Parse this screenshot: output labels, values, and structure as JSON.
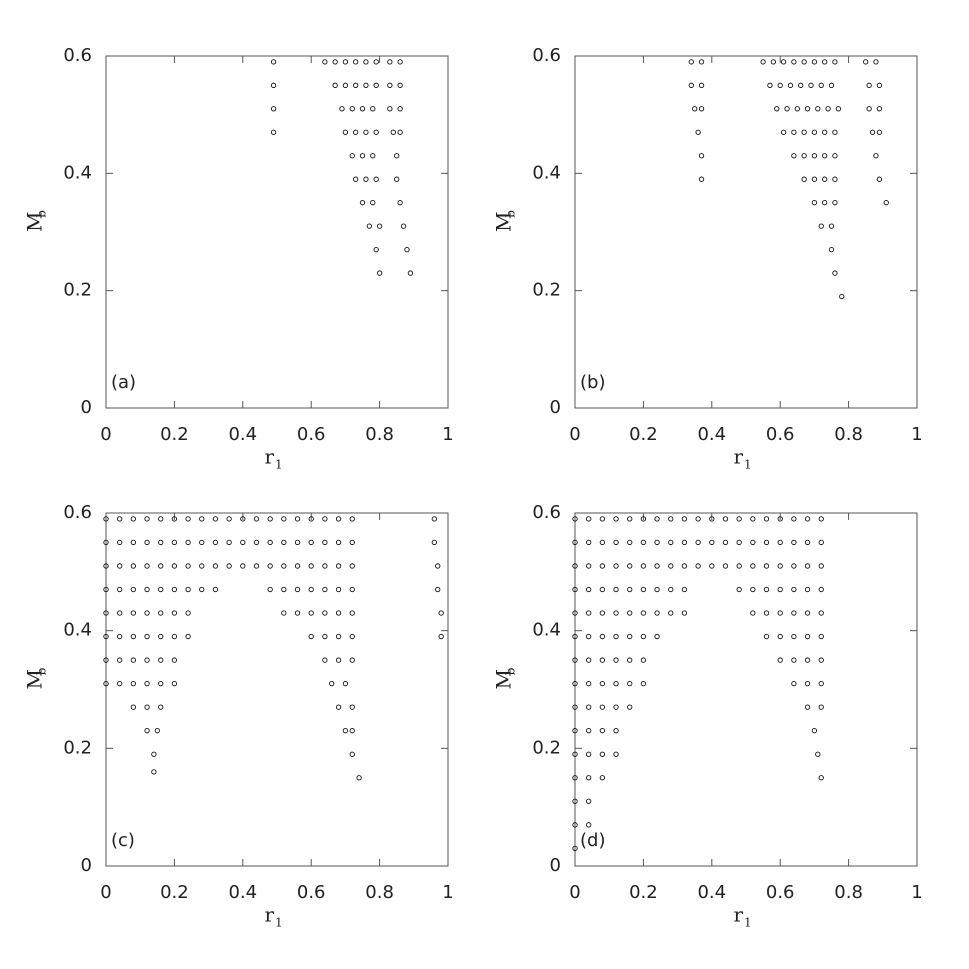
{
  "chart_data": [
    {
      "type": "scatter",
      "annotation": "(a)",
      "color": "#111111",
      "xlabel": {
        "text": "r",
        "subscript": "1"
      },
      "ylabel": {
        "text": "M",
        "subscript": "b"
      },
      "xlim": [
        0,
        1
      ],
      "ylim": [
        0,
        0.6
      ],
      "xticks": [
        0,
        0.2,
        0.4,
        0.6,
        0.8,
        1
      ],
      "yticks": [
        0,
        0.2,
        0.4,
        0.6
      ],
      "x": [
        0.49,
        0.64,
        0.67,
        0.7,
        0.73,
        0.76,
        0.79,
        0.83,
        0.86,
        0.49,
        0.67,
        0.7,
        0.73,
        0.76,
        0.79,
        0.83,
        0.86,
        0.49,
        0.69,
        0.72,
        0.75,
        0.78,
        0.83,
        0.86,
        0.49,
        0.7,
        0.73,
        0.76,
        0.79,
        0.84,
        0.86,
        0.72,
        0.75,
        0.78,
        0.85,
        0.73,
        0.76,
        0.79,
        0.85,
        0.75,
        0.78,
        0.86,
        0.77,
        0.8,
        0.87,
        0.79,
        0.88,
        0.8,
        0.89
      ],
      "values": [
        0.59,
        0.59,
        0.59,
        0.59,
        0.59,
        0.59,
        0.59,
        0.59,
        0.59,
        0.55,
        0.55,
        0.55,
        0.55,
        0.55,
        0.55,
        0.55,
        0.55,
        0.51,
        0.51,
        0.51,
        0.51,
        0.51,
        0.51,
        0.51,
        0.47,
        0.47,
        0.47,
        0.47,
        0.47,
        0.47,
        0.47,
        0.43,
        0.43,
        0.43,
        0.43,
        0.39,
        0.39,
        0.39,
        0.39,
        0.35,
        0.35,
        0.35,
        0.31,
        0.31,
        0.31,
        0.27,
        0.27,
        0.23,
        0.23
      ]
    },
    {
      "type": "scatter",
      "annotation": "(b)",
      "color": "#111111",
      "xlabel": {
        "text": "r",
        "subscript": "1"
      },
      "ylabel": {
        "text": "M",
        "subscript": "b"
      },
      "xlim": [
        0,
        1
      ],
      "ylim": [
        0,
        0.6
      ],
      "xticks": [
        0,
        0.2,
        0.4,
        0.6,
        0.8,
        1
      ],
      "yticks": [
        0,
        0.2,
        0.4,
        0.6
      ],
      "x": [
        0.34,
        0.37,
        0.55,
        0.58,
        0.61,
        0.64,
        0.67,
        0.7,
        0.73,
        0.76,
        0.85,
        0.88,
        0.34,
        0.37,
        0.57,
        0.6,
        0.63,
        0.66,
        0.69,
        0.72,
        0.75,
        0.86,
        0.89,
        0.35,
        0.37,
        0.59,
        0.62,
        0.65,
        0.68,
        0.71,
        0.74,
        0.77,
        0.86,
        0.89,
        0.36,
        0.61,
        0.64,
        0.67,
        0.7,
        0.73,
        0.76,
        0.87,
        0.89,
        0.37,
        0.64,
        0.67,
        0.7,
        0.73,
        0.76,
        0.88,
        0.37,
        0.67,
        0.7,
        0.73,
        0.76,
        0.89,
        0.7,
        0.73,
        0.76,
        0.91,
        0.72,
        0.75,
        0.75,
        0.76,
        0.78
      ],
      "values": [
        0.59,
        0.59,
        0.59,
        0.59,
        0.59,
        0.59,
        0.59,
        0.59,
        0.59,
        0.59,
        0.59,
        0.59,
        0.55,
        0.55,
        0.55,
        0.55,
        0.55,
        0.55,
        0.55,
        0.55,
        0.55,
        0.55,
        0.55,
        0.51,
        0.51,
        0.51,
        0.51,
        0.51,
        0.51,
        0.51,
        0.51,
        0.51,
        0.51,
        0.51,
        0.47,
        0.47,
        0.47,
        0.47,
        0.47,
        0.47,
        0.47,
        0.47,
        0.47,
        0.43,
        0.43,
        0.43,
        0.43,
        0.43,
        0.43,
        0.43,
        0.39,
        0.39,
        0.39,
        0.39,
        0.39,
        0.39,
        0.35,
        0.35,
        0.35,
        0.35,
        0.31,
        0.31,
        0.27,
        0.23,
        0.19
      ]
    },
    {
      "type": "scatter",
      "annotation": "(c)",
      "color": "#111111",
      "xlabel": {
        "text": "r",
        "subscript": "1"
      },
      "ylabel": {
        "text": "M",
        "subscript": "b"
      },
      "xlim": [
        0,
        1
      ],
      "ylim": [
        0,
        0.6
      ],
      "xticks": [
        0,
        0.2,
        0.4,
        0.6,
        0.8,
        1
      ],
      "yticks": [
        0,
        0.2,
        0.4,
        0.6
      ],
      "x": [
        0,
        0.04,
        0.08,
        0.12,
        0.16,
        0.2,
        0.24,
        0.28,
        0.32,
        0.36,
        0.4,
        0.44,
        0.48,
        0.52,
        0.56,
        0.6,
        0.64,
        0.68,
        0.72,
        0.96,
        0,
        0.04,
        0.08,
        0.12,
        0.16,
        0.2,
        0.24,
        0.28,
        0.32,
        0.36,
        0.4,
        0.44,
        0.48,
        0.52,
        0.56,
        0.6,
        0.64,
        0.68,
        0.72,
        0.96,
        0,
        0.04,
        0.08,
        0.12,
        0.16,
        0.2,
        0.24,
        0.28,
        0.32,
        0.36,
        0.4,
        0.44,
        0.48,
        0.52,
        0.56,
        0.6,
        0.64,
        0.68,
        0.72,
        0.97,
        0,
        0.04,
        0.08,
        0.12,
        0.16,
        0.2,
        0.24,
        0.28,
        0.32,
        0.48,
        0.52,
        0.56,
        0.6,
        0.64,
        0.68,
        0.72,
        0.97,
        0,
        0.04,
        0.08,
        0.12,
        0.16,
        0.2,
        0.24,
        0.52,
        0.56,
        0.6,
        0.64,
        0.68,
        0.72,
        0.98,
        0,
        0.04,
        0.08,
        0.12,
        0.16,
        0.2,
        0.24,
        0.6,
        0.64,
        0.68,
        0.72,
        0.98,
        0,
        0.04,
        0.08,
        0.12,
        0.16,
        0.2,
        0.64,
        0.68,
        0.72,
        0,
        0.04,
        0.08,
        0.12,
        0.16,
        0.2,
        0.66,
        0.7,
        0.08,
        0.12,
        0.16,
        0.68,
        0.72,
        0.12,
        0.15,
        0.7,
        0.72,
        0.14,
        0.72,
        0.14,
        0.74
      ],
      "values": [
        0.59,
        0.59,
        0.59,
        0.59,
        0.59,
        0.59,
        0.59,
        0.59,
        0.59,
        0.59,
        0.59,
        0.59,
        0.59,
        0.59,
        0.59,
        0.59,
        0.59,
        0.59,
        0.59,
        0.59,
        0.55,
        0.55,
        0.55,
        0.55,
        0.55,
        0.55,
        0.55,
        0.55,
        0.55,
        0.55,
        0.55,
        0.55,
        0.55,
        0.55,
        0.55,
        0.55,
        0.55,
        0.55,
        0.55,
        0.55,
        0.51,
        0.51,
        0.51,
        0.51,
        0.51,
        0.51,
        0.51,
        0.51,
        0.51,
        0.51,
        0.51,
        0.51,
        0.51,
        0.51,
        0.51,
        0.51,
        0.51,
        0.51,
        0.51,
        0.51,
        0.47,
        0.47,
        0.47,
        0.47,
        0.47,
        0.47,
        0.47,
        0.47,
        0.47,
        0.47,
        0.47,
        0.47,
        0.47,
        0.47,
        0.47,
        0.47,
        0.47,
        0.43,
        0.43,
        0.43,
        0.43,
        0.43,
        0.43,
        0.43,
        0.43,
        0.43,
        0.43,
        0.43,
        0.43,
        0.43,
        0.43,
        0.39,
        0.39,
        0.39,
        0.39,
        0.39,
        0.39,
        0.39,
        0.39,
        0.39,
        0.39,
        0.39,
        0.39,
        0.35,
        0.35,
        0.35,
        0.35,
        0.35,
        0.35,
        0.35,
        0.35,
        0.35,
        0.31,
        0.31,
        0.31,
        0.31,
        0.31,
        0.31,
        0.31,
        0.31,
        0.27,
        0.27,
        0.27,
        0.27,
        0.27,
        0.23,
        0.23,
        0.23,
        0.23,
        0.19,
        0.19,
        0.16,
        0.15
      ]
    },
    {
      "type": "scatter",
      "annotation": "(d)",
      "color": "#111111",
      "xlabel": {
        "text": "r",
        "subscript": "1"
      },
      "ylabel": {
        "text": "M",
        "subscript": "b"
      },
      "xlim": [
        0,
        1
      ],
      "ylim": [
        0,
        0.6
      ],
      "xticks": [
        0,
        0.2,
        0.4,
        0.6,
        0.8,
        1
      ],
      "yticks": [
        0,
        0.2,
        0.4,
        0.6
      ],
      "x": [
        0,
        0.04,
        0.08,
        0.12,
        0.16,
        0.2,
        0.24,
        0.28,
        0.32,
        0.36,
        0.4,
        0.44,
        0.48,
        0.52,
        0.56,
        0.6,
        0.64,
        0.68,
        0.72,
        0,
        0.04,
        0.08,
        0.12,
        0.16,
        0.2,
        0.24,
        0.28,
        0.32,
        0.36,
        0.4,
        0.44,
        0.48,
        0.52,
        0.56,
        0.6,
        0.64,
        0.68,
        0.72,
        0,
        0.04,
        0.08,
        0.12,
        0.16,
        0.2,
        0.24,
        0.28,
        0.32,
        0.36,
        0.4,
        0.44,
        0.48,
        0.52,
        0.56,
        0.6,
        0.64,
        0.68,
        0.72,
        0,
        0.04,
        0.08,
        0.12,
        0.16,
        0.2,
        0.24,
        0.28,
        0.32,
        0.48,
        0.52,
        0.56,
        0.6,
        0.64,
        0.68,
        0.72,
        0,
        0.04,
        0.08,
        0.12,
        0.16,
        0.2,
        0.24,
        0.28,
        0.32,
        0.52,
        0.56,
        0.6,
        0.64,
        0.68,
        0.72,
        0,
        0.04,
        0.08,
        0.12,
        0.16,
        0.2,
        0.24,
        0.56,
        0.6,
        0.64,
        0.68,
        0.72,
        0,
        0.04,
        0.08,
        0.12,
        0.16,
        0.2,
        0.6,
        0.64,
        0.68,
        0.72,
        0,
        0.04,
        0.08,
        0.12,
        0.16,
        0.2,
        0.64,
        0.68,
        0.72,
        0,
        0.04,
        0.08,
        0.12,
        0.16,
        0.68,
        0.72,
        0,
        0.04,
        0.08,
        0.12,
        0.7,
        0,
        0.04,
        0.08,
        0.12,
        0.71,
        0,
        0.04,
        0.08,
        0.72,
        0,
        0.04,
        0,
        0.04,
        0
      ],
      "values": [
        0.59,
        0.59,
        0.59,
        0.59,
        0.59,
        0.59,
        0.59,
        0.59,
        0.59,
        0.59,
        0.59,
        0.59,
        0.59,
        0.59,
        0.59,
        0.59,
        0.59,
        0.59,
        0.59,
        0.55,
        0.55,
        0.55,
        0.55,
        0.55,
        0.55,
        0.55,
        0.55,
        0.55,
        0.55,
        0.55,
        0.55,
        0.55,
        0.55,
        0.55,
        0.55,
        0.55,
        0.55,
        0.55,
        0.51,
        0.51,
        0.51,
        0.51,
        0.51,
        0.51,
        0.51,
        0.51,
        0.51,
        0.51,
        0.51,
        0.51,
        0.51,
        0.51,
        0.51,
        0.51,
        0.51,
        0.51,
        0.51,
        0.47,
        0.47,
        0.47,
        0.47,
        0.47,
        0.47,
        0.47,
        0.47,
        0.47,
        0.47,
        0.47,
        0.47,
        0.47,
        0.47,
        0.47,
        0.47,
        0.43,
        0.43,
        0.43,
        0.43,
        0.43,
        0.43,
        0.43,
        0.43,
        0.43,
        0.43,
        0.43,
        0.43,
        0.43,
        0.43,
        0.43,
        0.39,
        0.39,
        0.39,
        0.39,
        0.39,
        0.39,
        0.39,
        0.39,
        0.39,
        0.39,
        0.39,
        0.39,
        0.35,
        0.35,
        0.35,
        0.35,
        0.35,
        0.35,
        0.35,
        0.35,
        0.35,
        0.35,
        0.31,
        0.31,
        0.31,
        0.31,
        0.31,
        0.31,
        0.31,
        0.31,
        0.31,
        0.27,
        0.27,
        0.27,
        0.27,
        0.27,
        0.27,
        0.27,
        0.23,
        0.23,
        0.23,
        0.23,
        0.23,
        0.19,
        0.19,
        0.19,
        0.19,
        0.19,
        0.15,
        0.15,
        0.15,
        0.15,
        0.11,
        0.11,
        0.07,
        0.07,
        0.03
      ]
    }
  ]
}
